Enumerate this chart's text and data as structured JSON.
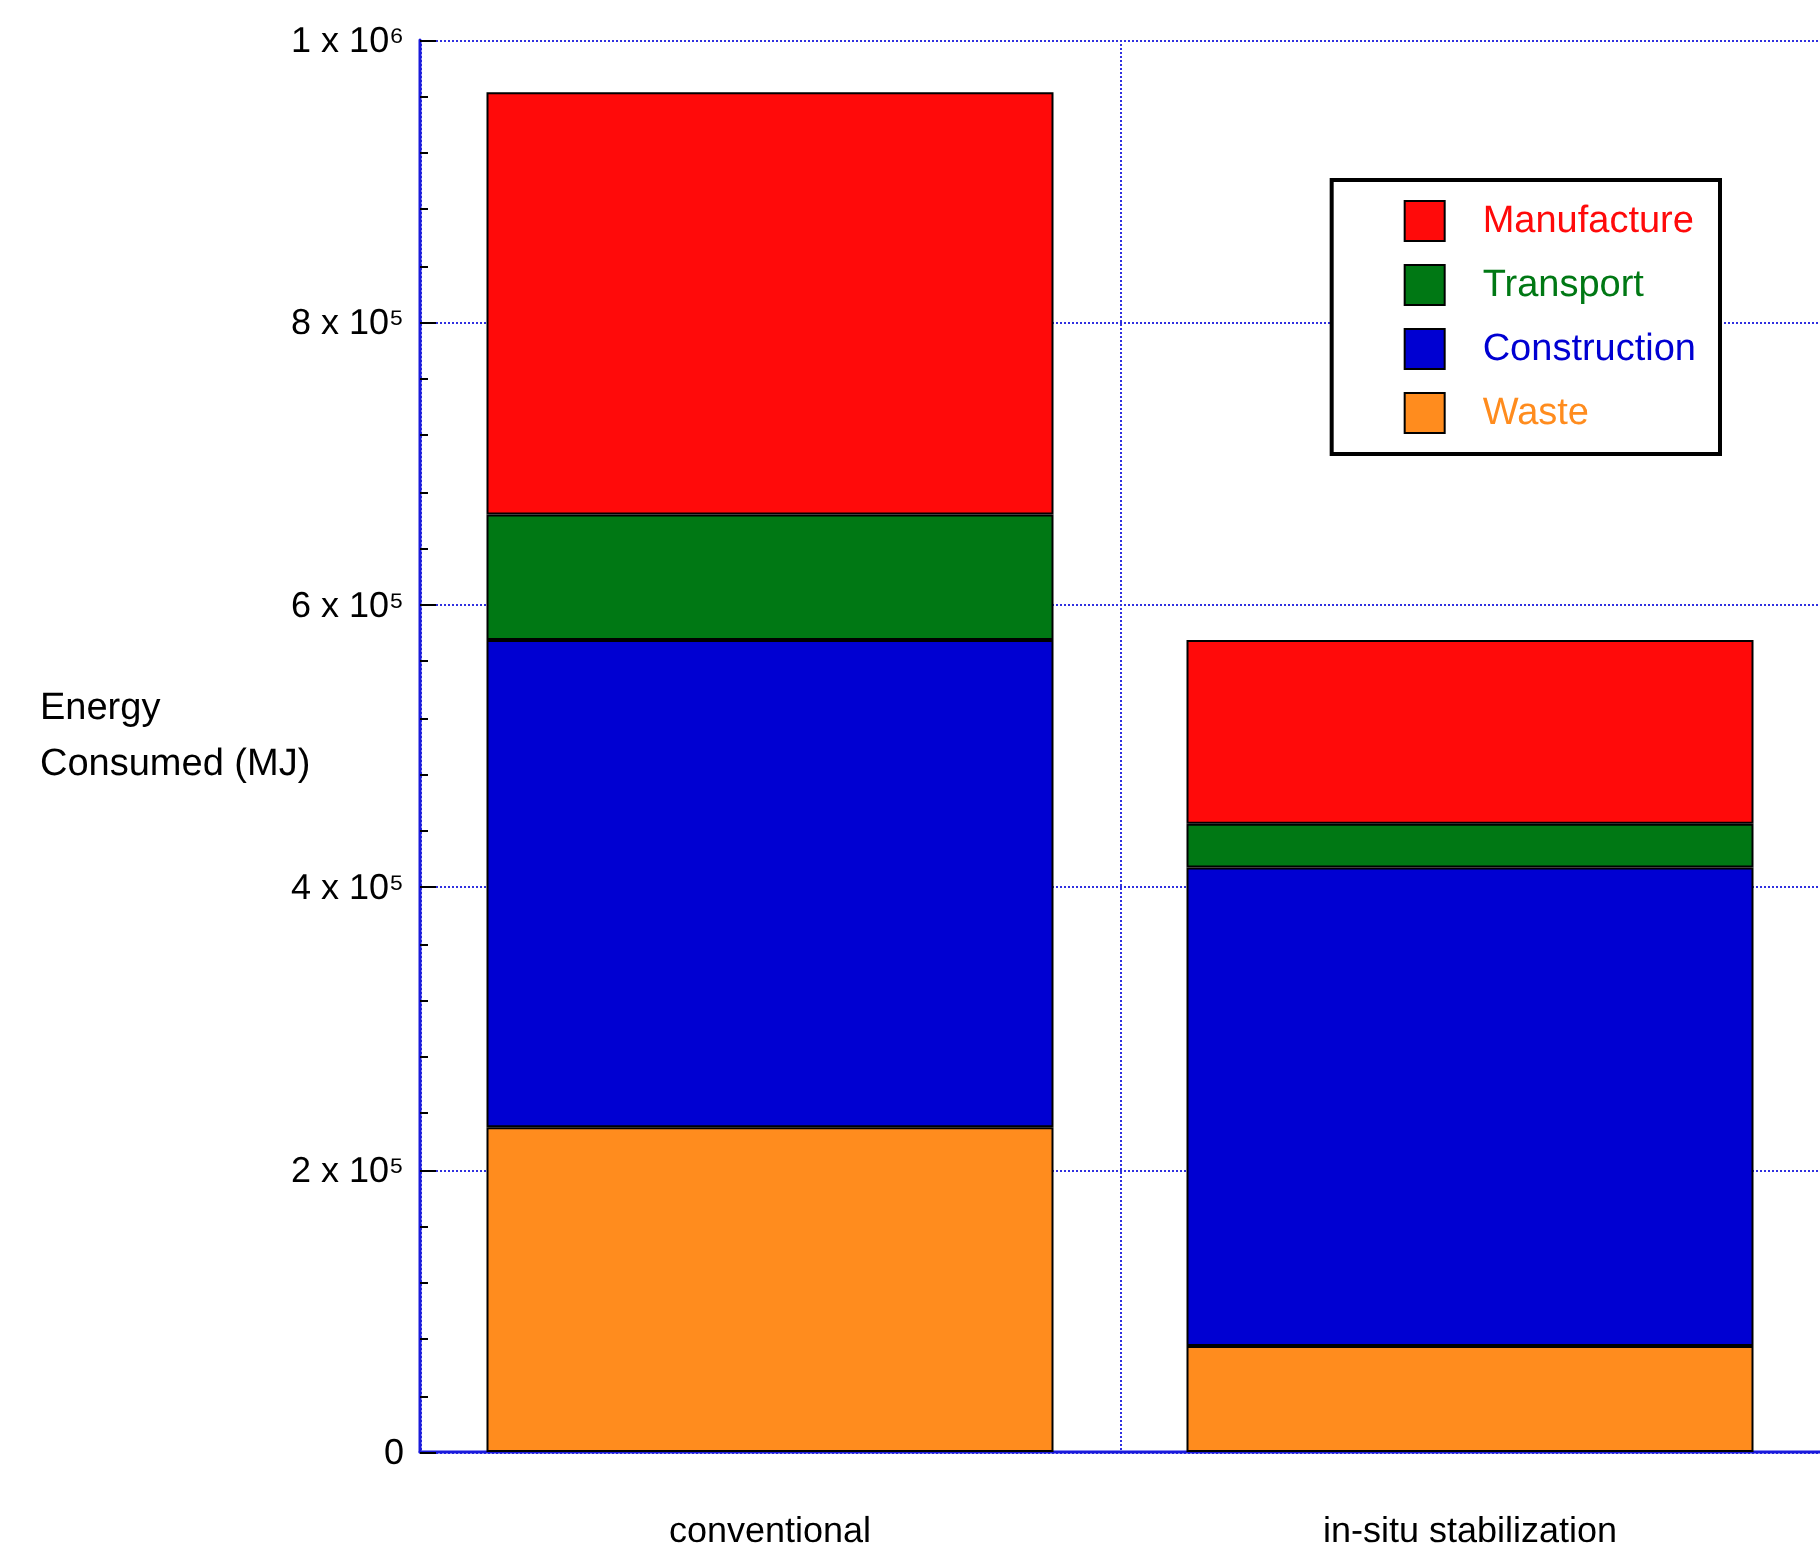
{
  "chart_data": {
    "type": "bar",
    "stacked": true,
    "ylabel": "Energy Consumed (MJ)",
    "categories": [
      "conventional",
      "in-situ stabilization"
    ],
    "series": [
      {
        "name": "Waste",
        "color": "#ff8c1e",
        "values": [
          230000,
          75000
        ]
      },
      {
        "name": "Construction",
        "color": "#0000d2",
        "values": [
          345000,
          339000
        ]
      },
      {
        "name": "Transport",
        "color": "#007814",
        "values": [
          89000,
          31000
        ]
      },
      {
        "name": "Manufacture",
        "color": "#ff0a0a",
        "values": [
          299000,
          130000
        ]
      }
    ],
    "ylim": [
      0,
      1000000
    ],
    "yticks": [
      {
        "value": 0,
        "label": "0"
      },
      {
        "value": 200000,
        "label": "2 x 10⁵"
      },
      {
        "value": 400000,
        "label": "4 x 10⁵"
      },
      {
        "value": 600000,
        "label": "6 x 10⁵"
      },
      {
        "value": 800000,
        "label": "8 x 10⁵"
      },
      {
        "value": 1000000,
        "label": "1 x 10⁶"
      }
    ],
    "grid": true,
    "legend": "top right"
  }
}
